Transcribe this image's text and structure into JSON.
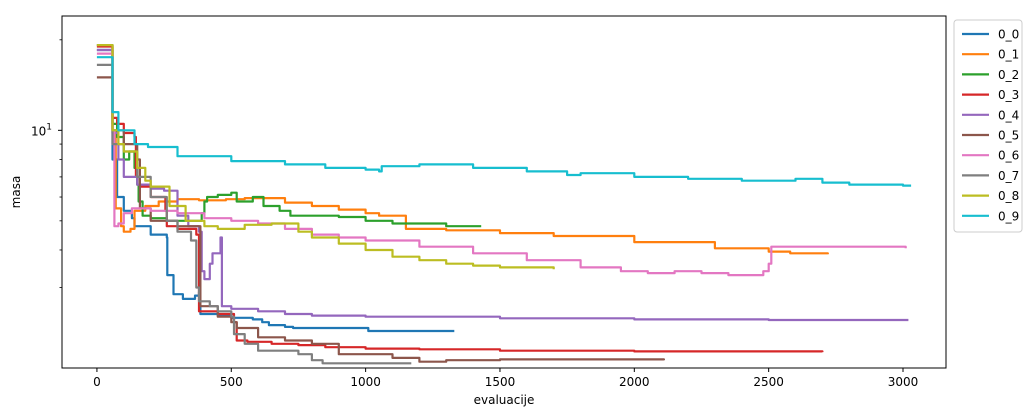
{
  "chart_data": {
    "type": "line",
    "xlabel": "evaluacije",
    "ylabel": "masa",
    "x_scale": "linear",
    "y_scale": "log",
    "xlim": [
      -130,
      3160
    ],
    "ylim": [
      1.62,
      24
    ],
    "x_ticks": [
      0,
      500,
      1000,
      1500,
      2000,
      2500,
      3000
    ],
    "y_major_ticks": [
      {
        "value": 10,
        "base": "10",
        "exp": "1"
      }
    ],
    "y_minor_ticks": [
      3,
      4,
      5,
      6,
      7,
      8,
      9,
      20
    ],
    "grid": false,
    "legend_position": "outside-right-top",
    "series": [
      {
        "name": "0_0",
        "color": "#1f77b4",
        "points": [
          [
            0,
            18.5
          ],
          [
            55,
            18.5
          ],
          [
            58,
            8.0
          ],
          [
            75,
            6.0
          ],
          [
            100,
            5.4
          ],
          [
            130,
            5.1
          ],
          [
            140,
            4.8
          ],
          [
            200,
            4.5
          ],
          [
            260,
            4.4
          ],
          [
            262,
            3.3
          ],
          [
            285,
            2.85
          ],
          [
            320,
            2.75
          ],
          [
            365,
            2.82
          ],
          [
            380,
            2.9
          ],
          [
            385,
            2.45
          ],
          [
            450,
            2.42
          ],
          [
            500,
            2.38
          ],
          [
            580,
            2.35
          ],
          [
            615,
            2.3
          ],
          [
            640,
            2.25
          ],
          [
            700,
            2.22
          ],
          [
            730,
            2.2
          ],
          [
            830,
            2.2
          ],
          [
            950,
            2.2
          ],
          [
            1010,
            2.15
          ],
          [
            1200,
            2.15
          ],
          [
            1330,
            2.15
          ]
        ]
      },
      {
        "name": "0_1",
        "color": "#ff7f0e",
        "points": [
          [
            0,
            19.2
          ],
          [
            55,
            19.2
          ],
          [
            58,
            10.0
          ],
          [
            70,
            5.5
          ],
          [
            90,
            4.8
          ],
          [
            100,
            4.6
          ],
          [
            125,
            4.7
          ],
          [
            140,
            5.4
          ],
          [
            180,
            5.6
          ],
          [
            230,
            5.8
          ],
          [
            300,
            5.9
          ],
          [
            380,
            5.85
          ],
          [
            480,
            5.9
          ],
          [
            550,
            5.95
          ],
          [
            700,
            5.75
          ],
          [
            800,
            5.6
          ],
          [
            900,
            5.45
          ],
          [
            1000,
            5.3
          ],
          [
            1050,
            5.2
          ],
          [
            1150,
            4.7
          ],
          [
            1300,
            4.65
          ],
          [
            1500,
            4.55
          ],
          [
            1700,
            4.45
          ],
          [
            2000,
            4.25
          ],
          [
            2300,
            4.05
          ],
          [
            2500,
            3.95
          ],
          [
            2580,
            3.9
          ],
          [
            2720,
            3.87
          ]
        ]
      },
      {
        "name": "0_2",
        "color": "#2ca02c",
        "points": [
          [
            0,
            19.2
          ],
          [
            55,
            19.2
          ],
          [
            58,
            10.5
          ],
          [
            75,
            9.5
          ],
          [
            100,
            8.0
          ],
          [
            120,
            8.5
          ],
          [
            140,
            7.5
          ],
          [
            150,
            6.6
          ],
          [
            155,
            5.8
          ],
          [
            170,
            5.2
          ],
          [
            200,
            5.1
          ],
          [
            260,
            5.0
          ],
          [
            360,
            5.0
          ],
          [
            390,
            5.3
          ],
          [
            400,
            5.8
          ],
          [
            410,
            6.0
          ],
          [
            450,
            6.1
          ],
          [
            500,
            6.2
          ],
          [
            520,
            5.8
          ],
          [
            580,
            6.0
          ],
          [
            620,
            5.6
          ],
          [
            680,
            5.4
          ],
          [
            720,
            5.2
          ],
          [
            800,
            5.2
          ],
          [
            900,
            5.15
          ],
          [
            1000,
            5.0
          ],
          [
            1100,
            4.9
          ],
          [
            1300,
            4.8
          ],
          [
            1430,
            4.8
          ]
        ]
      },
      {
        "name": "0_3",
        "color": "#d62728",
        "points": [
          [
            0,
            19.0
          ],
          [
            55,
            19.0
          ],
          [
            58,
            11.0
          ],
          [
            75,
            10.5
          ],
          [
            100,
            9.8
          ],
          [
            140,
            9.5
          ],
          [
            145,
            7.0
          ],
          [
            160,
            6.5
          ],
          [
            200,
            6.0
          ],
          [
            255,
            5.4
          ],
          [
            260,
            4.8
          ],
          [
            300,
            4.7
          ],
          [
            370,
            4.5
          ],
          [
            380,
            2.5
          ],
          [
            420,
            2.5
          ],
          [
            450,
            2.45
          ],
          [
            510,
            2.3
          ],
          [
            520,
            2.0
          ],
          [
            560,
            1.98
          ],
          [
            650,
            1.95
          ],
          [
            750,
            1.93
          ],
          [
            850,
            1.9
          ],
          [
            1000,
            1.88
          ],
          [
            1200,
            1.87
          ],
          [
            1500,
            1.85
          ],
          [
            2000,
            1.84
          ],
          [
            2700,
            1.83
          ]
        ]
      },
      {
        "name": "0_4",
        "color": "#9467bd",
        "points": [
          [
            0,
            18.5
          ],
          [
            55,
            18.5
          ],
          [
            58,
            9.8
          ],
          [
            80,
            8.0
          ],
          [
            100,
            7.0
          ],
          [
            150,
            6.6
          ],
          [
            200,
            6.4
          ],
          [
            250,
            6.3
          ],
          [
            300,
            5.2
          ],
          [
            340,
            4.8
          ],
          [
            380,
            4.6
          ],
          [
            390,
            3.4
          ],
          [
            400,
            3.2
          ],
          [
            420,
            3.6
          ],
          [
            430,
            3.9
          ],
          [
            460,
            4.4
          ],
          [
            465,
            2.6
          ],
          [
            500,
            2.55
          ],
          [
            600,
            2.5
          ],
          [
            700,
            2.45
          ],
          [
            800,
            2.42
          ],
          [
            1000,
            2.4
          ],
          [
            1500,
            2.37
          ],
          [
            2000,
            2.35
          ],
          [
            2500,
            2.34
          ],
          [
            3020,
            2.34
          ]
        ]
      },
      {
        "name": "0_5",
        "color": "#8c564b",
        "points": [
          [
            0,
            15.0
          ],
          [
            55,
            15.0
          ],
          [
            58,
            10.0
          ],
          [
            100,
            9.0
          ],
          [
            150,
            8.0
          ],
          [
            160,
            5.5
          ],
          [
            200,
            5.0
          ],
          [
            300,
            4.8
          ],
          [
            385,
            2.6
          ],
          [
            450,
            2.4
          ],
          [
            500,
            2.3
          ],
          [
            520,
            2.2
          ],
          [
            600,
            2.05
          ],
          [
            700,
            2.0
          ],
          [
            800,
            1.95
          ],
          [
            900,
            1.8
          ],
          [
            1100,
            1.75
          ],
          [
            1200,
            1.7
          ],
          [
            1300,
            1.72
          ],
          [
            1500,
            1.73
          ],
          [
            1800,
            1.73
          ],
          [
            2110,
            1.72
          ]
        ]
      },
      {
        "name": "0_6",
        "color": "#e377c2",
        "points": [
          [
            0,
            18.0
          ],
          [
            55,
            18.0
          ],
          [
            58,
            10.0
          ],
          [
            65,
            4.8
          ],
          [
            80,
            4.9
          ],
          [
            100,
            5.3
          ],
          [
            130,
            5.5
          ],
          [
            200,
            5.4
          ],
          [
            300,
            5.3
          ],
          [
            400,
            5.1
          ],
          [
            500,
            5.0
          ],
          [
            600,
            4.9
          ],
          [
            700,
            4.7
          ],
          [
            800,
            4.5
          ],
          [
            900,
            4.4
          ],
          [
            1000,
            4.3
          ],
          [
            1200,
            4.1
          ],
          [
            1400,
            3.9
          ],
          [
            1600,
            3.7
          ],
          [
            1800,
            3.5
          ],
          [
            1950,
            3.4
          ],
          [
            2050,
            3.35
          ],
          [
            2150,
            3.4
          ],
          [
            2250,
            3.35
          ],
          [
            2350,
            3.3
          ],
          [
            2450,
            3.3
          ],
          [
            2480,
            3.4
          ],
          [
            2500,
            3.6
          ],
          [
            2510,
            4.1
          ],
          [
            3010,
            4.05
          ]
        ]
      },
      {
        "name": "0_7",
        "color": "#7f7f7f",
        "points": [
          [
            0,
            16.5
          ],
          [
            55,
            16.5
          ],
          [
            58,
            9.0
          ],
          [
            100,
            8.5
          ],
          [
            150,
            7.0
          ],
          [
            200,
            6.0
          ],
          [
            260,
            5.0
          ],
          [
            300,
            4.6
          ],
          [
            350,
            4.3
          ],
          [
            370,
            3.0
          ],
          [
            380,
            2.7
          ],
          [
            420,
            2.6
          ],
          [
            450,
            2.5
          ],
          [
            500,
            2.4
          ],
          [
            510,
            2.1
          ],
          [
            550,
            1.95
          ],
          [
            600,
            1.85
          ],
          [
            700,
            1.85
          ],
          [
            750,
            1.8
          ],
          [
            800,
            1.72
          ],
          [
            840,
            1.68
          ],
          [
            900,
            1.68
          ],
          [
            1000,
            1.68
          ],
          [
            1170,
            1.68
          ]
        ]
      },
      {
        "name": "0_8",
        "color": "#bcbd22",
        "points": [
          [
            0,
            19.2
          ],
          [
            55,
            19.2
          ],
          [
            58,
            10.0
          ],
          [
            80,
            9.0
          ],
          [
            100,
            8.5
          ],
          [
            150,
            7.5
          ],
          [
            180,
            6.8
          ],
          [
            200,
            6.5
          ],
          [
            260,
            6.5
          ],
          [
            270,
            5.6
          ],
          [
            330,
            5.0
          ],
          [
            400,
            4.8
          ],
          [
            450,
            4.7
          ],
          [
            550,
            4.85
          ],
          [
            650,
            4.9
          ],
          [
            740,
            4.9
          ],
          [
            750,
            4.6
          ],
          [
            800,
            4.4
          ],
          [
            900,
            4.2
          ],
          [
            1000,
            4.0
          ],
          [
            1100,
            3.8
          ],
          [
            1200,
            3.7
          ],
          [
            1300,
            3.6
          ],
          [
            1400,
            3.55
          ],
          [
            1500,
            3.5
          ],
          [
            1600,
            3.5
          ],
          [
            1700,
            3.45
          ]
        ]
      },
      {
        "name": "0_9",
        "color": "#17becf",
        "points": [
          [
            0,
            17.5
          ],
          [
            55,
            17.5
          ],
          [
            58,
            11.5
          ],
          [
            80,
            10.0
          ],
          [
            140,
            9.0
          ],
          [
            190,
            8.8
          ],
          [
            300,
            8.2
          ],
          [
            500,
            7.9
          ],
          [
            700,
            7.7
          ],
          [
            850,
            7.5
          ],
          [
            1000,
            7.4
          ],
          [
            1050,
            7.3
          ],
          [
            1060,
            7.6
          ],
          [
            1150,
            7.6
          ],
          [
            1200,
            7.7
          ],
          [
            1400,
            7.5
          ],
          [
            1600,
            7.3
          ],
          [
            1750,
            7.1
          ],
          [
            1800,
            7.2
          ],
          [
            2000,
            7.0
          ],
          [
            2200,
            6.9
          ],
          [
            2400,
            6.8
          ],
          [
            2600,
            6.9
          ],
          [
            2700,
            6.7
          ],
          [
            2800,
            6.6
          ],
          [
            3000,
            6.55
          ],
          [
            3030,
            6.55
          ]
        ]
      }
    ]
  }
}
